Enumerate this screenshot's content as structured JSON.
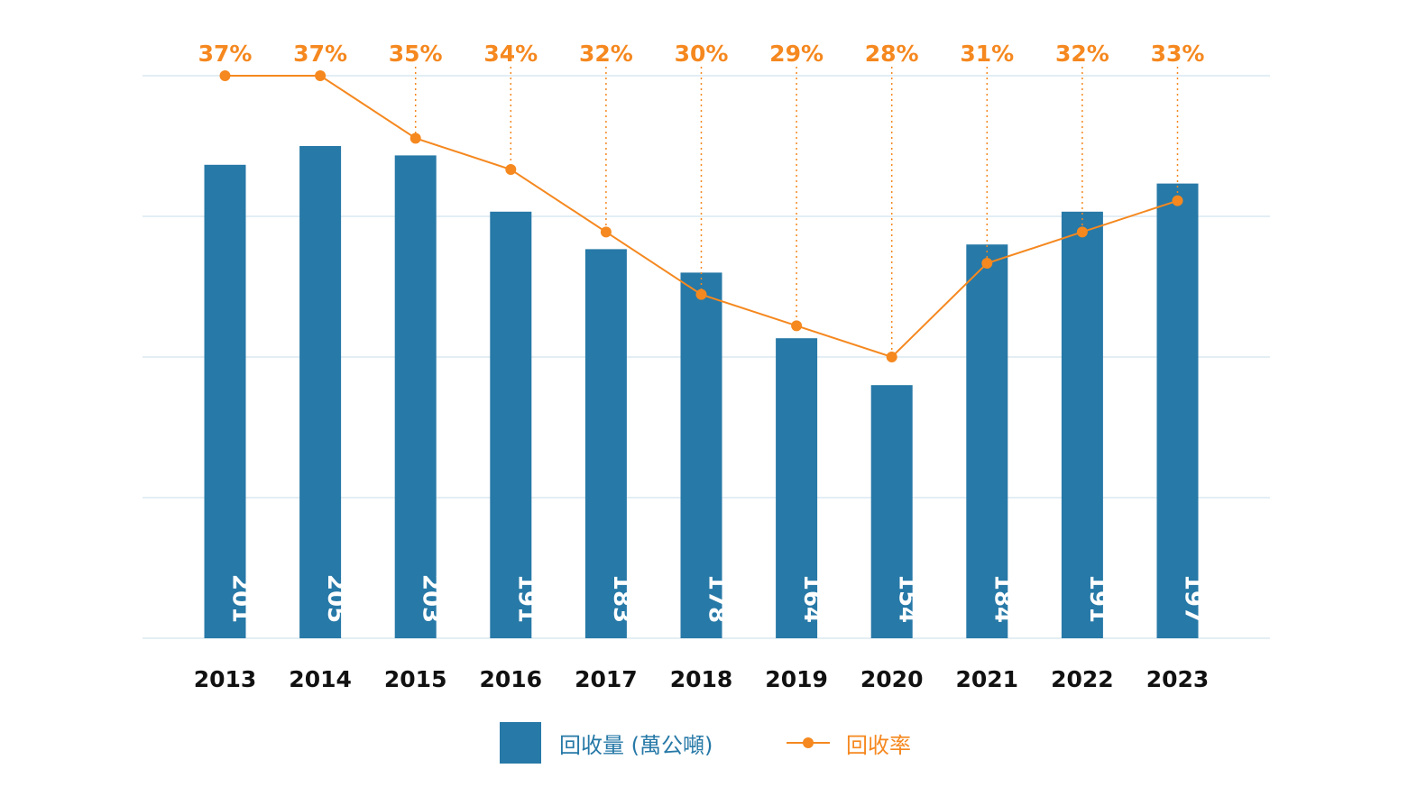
{
  "chart_data": {
    "type": "bar",
    "categories": [
      "2013",
      "2014",
      "2015",
      "2016",
      "2017",
      "2018",
      "2019",
      "2020",
      "2021",
      "2022",
      "2023"
    ],
    "series": [
      {
        "name": "回收量 (萬公噸)",
        "type": "bar",
        "values": [
          201,
          205,
          203,
          191,
          183,
          178,
          164,
          154,
          184,
          191,
          197
        ],
        "labels": [
          "201",
          "205",
          "203",
          "191",
          "183",
          "178",
          "164",
          "154",
          "184",
          "191",
          "197"
        ]
      },
      {
        "name": "回收率",
        "type": "line",
        "values": [
          37,
          37,
          35,
          34,
          32,
          30,
          29,
          28,
          31,
          32,
          33
        ],
        "labels": [
          "37%",
          "37%",
          "35%",
          "34%",
          "32%",
          "30%",
          "29%",
          "28%",
          "31%",
          "32%",
          "33%"
        ]
      }
    ],
    "bar_ylim": [
      100,
      220
    ],
    "line_ylim": [
      19,
      37
    ],
    "grid": true,
    "legend_position": "bottom",
    "colors": {
      "bar": "#2779a7",
      "line": "#f5881f",
      "grid": "#e3eef4",
      "axis_text": "#111111",
      "bar_label": "#ffffff"
    }
  }
}
